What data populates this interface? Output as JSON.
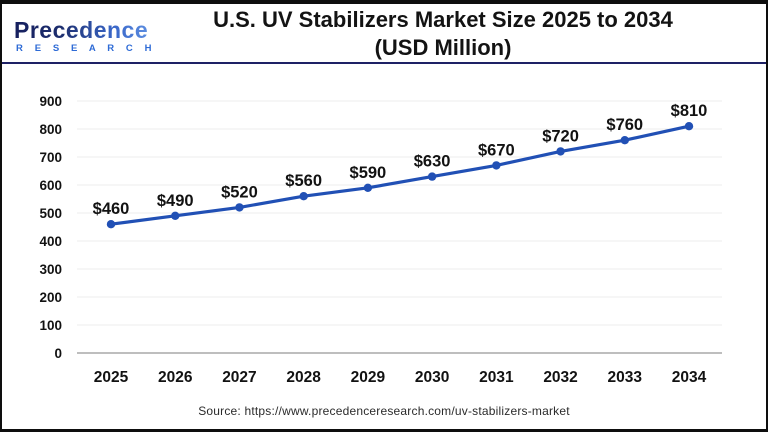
{
  "header": {
    "logo_name": "Precedence",
    "logo_subname": "R E S E A R C H",
    "title_line1": "U.S. UV Stabilizers Market Size 2025 to 2034",
    "title_line2": "(USD Million)"
  },
  "chart_data": {
    "type": "line",
    "title": "U.S. UV Stabilizers Market Size 2025 to 2034 (USD Million)",
    "categories": [
      "2025",
      "2026",
      "2027",
      "2028",
      "2029",
      "2030",
      "2031",
      "2032",
      "2033",
      "2034"
    ],
    "values": [
      460,
      490,
      520,
      560,
      590,
      630,
      670,
      720,
      760,
      810
    ],
    "data_labels": [
      "$460",
      "$490",
      "$520",
      "$560",
      "$590",
      "$630",
      "$670",
      "$720",
      "$760",
      "$810"
    ],
    "xlabel": "",
    "ylabel": "",
    "ylim": [
      0,
      900
    ],
    "ytick_step": 100,
    "grid": true,
    "legend": "none",
    "line_color": "#2150b5",
    "marker_color": "#2150b5",
    "gridline_color": "#ececec",
    "axis_line_color": "#a8a8a8",
    "label_color": "#121212"
  },
  "footer": {
    "source": "Source: https://www.precedenceresearch.com/uv-stabilizers-market"
  }
}
